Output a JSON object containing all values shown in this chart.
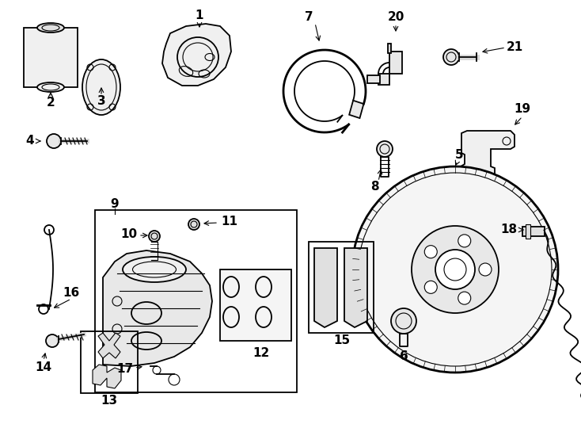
{
  "bg_color": "#ffffff",
  "line_color": "#000000",
  "fig_w": 7.34,
  "fig_h": 5.4,
  "dpi": 100
}
